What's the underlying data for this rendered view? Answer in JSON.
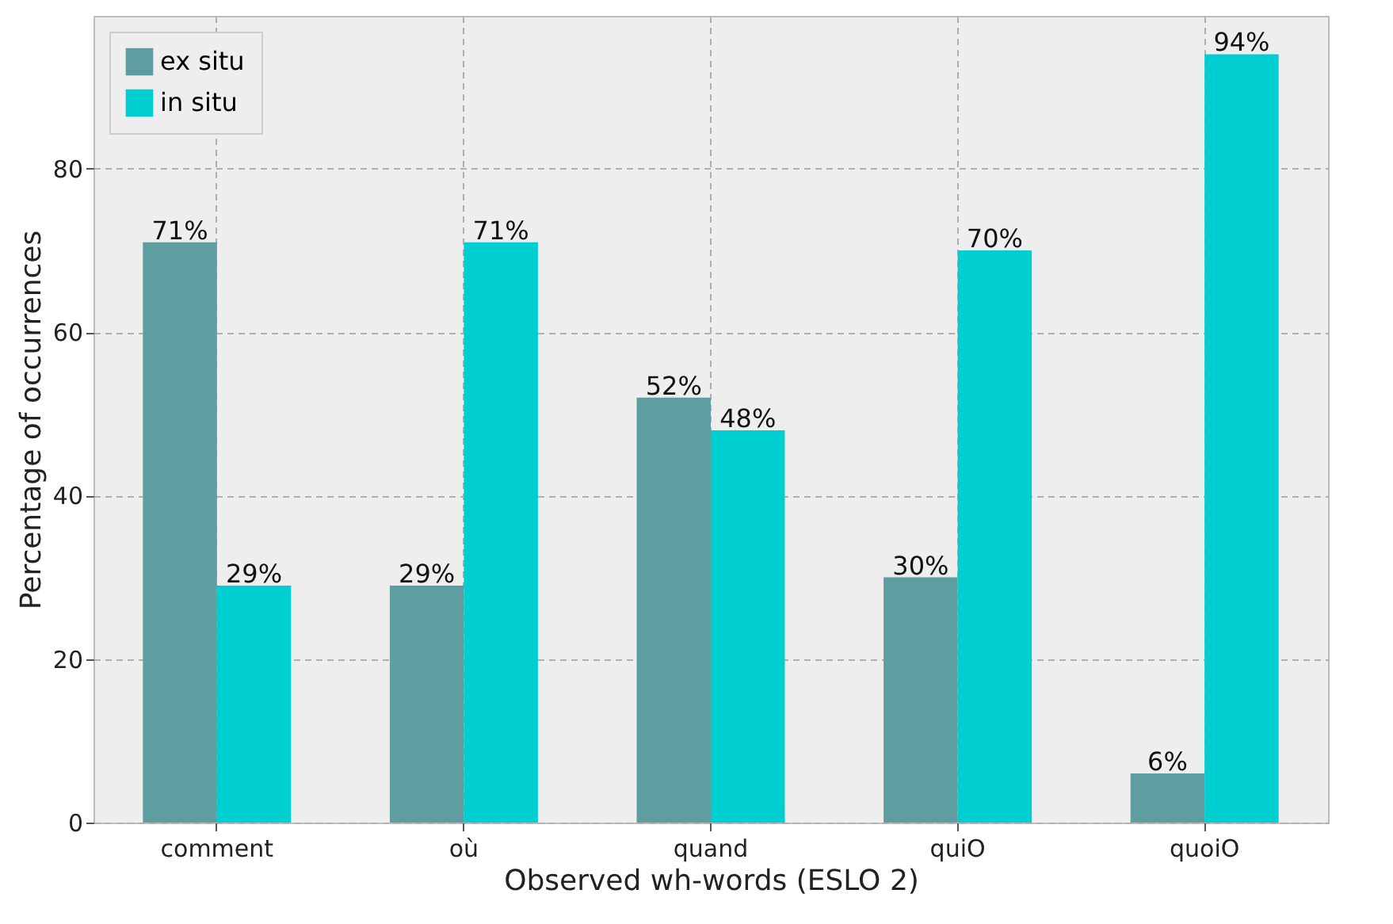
{
  "chart_data": {
    "type": "bar",
    "xlabel": "Observed wh-words (ESLO 2)",
    "ylabel": "Percentage of occurrences",
    "categories": [
      "comment",
      "où",
      "quand",
      "quiO",
      "quoiO"
    ],
    "series": [
      {
        "name": "ex situ",
        "color": "#5f9ea0",
        "values": [
          71,
          29,
          52,
          30,
          6
        ],
        "value_labels": [
          "71%",
          "29%",
          "52%",
          "30%",
          "6%"
        ]
      },
      {
        "name": "in situ",
        "color": "#00ced1",
        "values": [
          29,
          71,
          48,
          70,
          94
        ],
        "value_labels": [
          "29%",
          "71%",
          "48%",
          "70%",
          "94%"
        ]
      }
    ],
    "ylim": [
      0,
      98.7
    ],
    "yticks": [
      0,
      20,
      40,
      60,
      80
    ],
    "grid": true,
    "legend": "top left"
  }
}
